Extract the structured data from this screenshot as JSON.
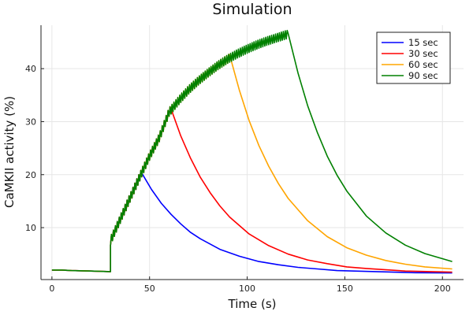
{
  "chart_data": {
    "type": "line",
    "title": "Simulation",
    "xlabel": "Time (s)",
    "ylabel": "CaMKII activity (%)",
    "xlim": [
      -5.6,
      210.8
    ],
    "ylim": [
      0.2,
      48.2
    ],
    "xticks": [
      0,
      50,
      100,
      150,
      200
    ],
    "yticks": [
      10,
      20,
      30,
      40
    ],
    "grid": true,
    "legend_position": "top-right",
    "shared_rise": {
      "x": [
        0,
        5,
        10,
        20,
        30,
        30,
        35,
        40,
        45,
        50,
        55,
        60,
        65,
        70,
        75,
        80,
        85,
        90,
        95,
        100,
        105,
        110,
        115,
        120
      ],
      "y": [
        2.0,
        2.0,
        1.9,
        1.8,
        1.7,
        7.5,
        11.6,
        15.6,
        19.6,
        23.5,
        27.0,
        31.8,
        34.0,
        36.0,
        37.7,
        39.2,
        40.6,
        41.8,
        42.8,
        43.7,
        44.5,
        45.2,
        45.8,
        46.4
      ]
    },
    "series": [
      {
        "name": "15 sec",
        "color": "#0000ff",
        "x": [
          46,
          51,
          56,
          61,
          66,
          71,
          76,
          86,
          96,
          106,
          116,
          126,
          136,
          146,
          166,
          186,
          205
        ],
        "y": [
          20.3,
          17.2,
          14.6,
          12.5,
          10.7,
          9.1,
          7.9,
          5.9,
          4.6,
          3.6,
          3.0,
          2.5,
          2.2,
          1.9,
          1.7,
          1.5,
          1.45
        ]
      },
      {
        "name": "30 sec",
        "color": "#ff0000",
        "x": [
          61,
          66,
          71,
          76,
          81,
          86,
          91,
          101,
          111,
          121,
          131,
          141,
          151,
          161,
          181,
          205
        ],
        "y": [
          32.4,
          27.3,
          23.1,
          19.5,
          16.6,
          14.1,
          12.0,
          8.8,
          6.6,
          5.0,
          3.9,
          3.2,
          2.6,
          2.3,
          1.8,
          1.6
        ]
      },
      {
        "name": "60 sec",
        "color": "#ffa500",
        "x": [
          91,
          96,
          101,
          106,
          111,
          116,
          121,
          131,
          141,
          151,
          161,
          171,
          181,
          191,
          205
        ],
        "y": [
          42.6,
          35.9,
          30.2,
          25.5,
          21.6,
          18.3,
          15.5,
          11.3,
          8.3,
          6.2,
          4.8,
          3.8,
          3.1,
          2.6,
          2.2
        ]
      },
      {
        "name": "90 sec",
        "color": "#008000",
        "x": [
          121,
          126,
          131,
          136,
          141,
          146,
          151,
          161,
          171,
          181,
          191,
          205
        ],
        "y": [
          46.6,
          39.2,
          33.0,
          27.9,
          23.5,
          19.9,
          16.9,
          12.2,
          9.0,
          6.7,
          5.1,
          3.6
        ]
      }
    ]
  }
}
